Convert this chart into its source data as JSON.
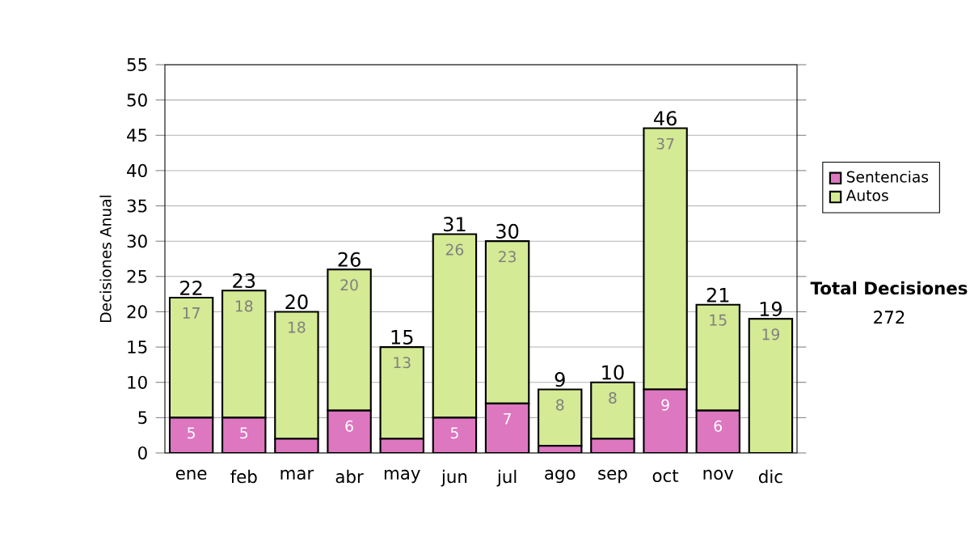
{
  "chart_data": {
    "type": "bar",
    "stacked": true,
    "ylabel": "Decisiones Anual",
    "categories": [
      "ene",
      "feb",
      "mar",
      "abr",
      "may",
      "jun",
      "jul",
      "ago",
      "sep",
      "oct",
      "nov",
      "dic"
    ],
    "series": [
      {
        "name": "Sentencias",
        "color": "#dd77c0",
        "values": [
          5,
          5,
          2,
          6,
          2,
          5,
          7,
          1,
          2,
          9,
          6,
          0
        ],
        "value_labels": [
          "5",
          "5",
          null,
          "6",
          null,
          "5",
          "7",
          null,
          null,
          "9",
          "6",
          null
        ]
      },
      {
        "name": "Autos",
        "color": "#d4ea94",
        "values": [
          17,
          18,
          18,
          20,
          13,
          26,
          23,
          8,
          8,
          37,
          15,
          19
        ],
        "value_labels": [
          "17",
          "18",
          "18",
          "20",
          "13",
          "26",
          "23",
          "8",
          "8",
          "37",
          "15",
          "19"
        ]
      }
    ],
    "totals": [
      "22",
      "23",
      "20",
      "26",
      "15",
      "31",
      "30",
      "9",
      "10",
      "46",
      "21",
      "19"
    ],
    "ylim": [
      0,
      55
    ],
    "yticks": [
      0,
      5,
      10,
      15,
      20,
      25,
      30,
      35,
      40,
      45,
      50,
      55
    ],
    "grid": "y",
    "legend": "right",
    "annotations": [
      "Total Decisiones",
      "272"
    ]
  }
}
